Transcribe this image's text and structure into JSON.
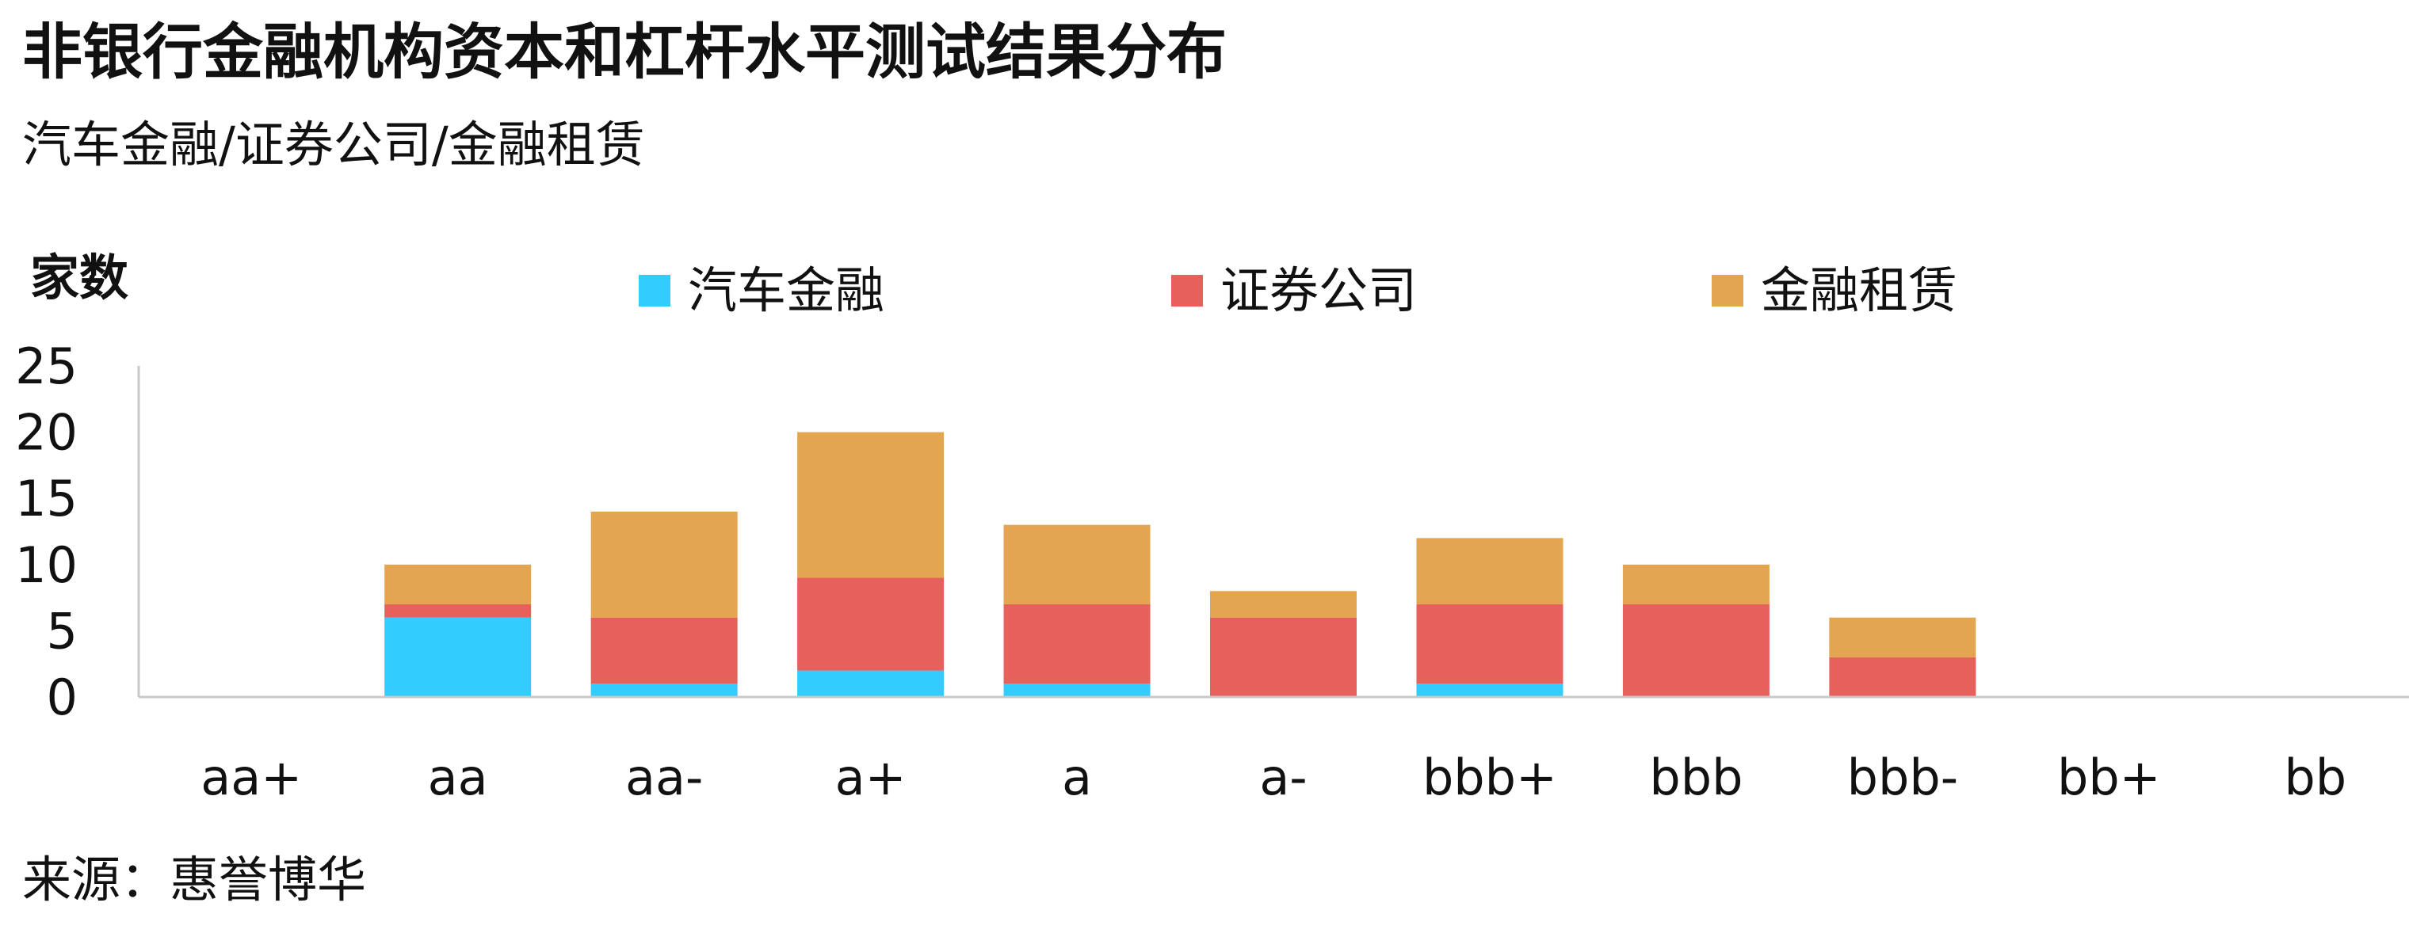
{
  "title": "非银行金融机构资本和杠杆水平测试结果分布",
  "subtitle": "汽车金融/证券公司/金融租赁",
  "source": "来源：惠誉博华",
  "chart_data": {
    "type": "bar",
    "stacked": true,
    "ylabel": "家数",
    "xlabel": "",
    "ylim": [
      0,
      25
    ],
    "yticks": [
      "0",
      "5",
      "10",
      "15",
      "20",
      "25"
    ],
    "grid": false,
    "legend_position": "top",
    "categories": [
      "aa+",
      "aa",
      "aa-",
      "a+",
      "a",
      "a-",
      "bbb+",
      "bbb",
      "bbb-",
      "bb+",
      "bb"
    ],
    "series": [
      {
        "name": "汽车金融",
        "color": "#33CCFF",
        "values": [
          0,
          6,
          1,
          2,
          1,
          0,
          1,
          0,
          0,
          0,
          0
        ]
      },
      {
        "name": "证券公司",
        "color": "#E8605C",
        "values": [
          0,
          1,
          5,
          7,
          6,
          6,
          6,
          7,
          3,
          0,
          0
        ]
      },
      {
        "name": "金融租赁",
        "color": "#E3A54F",
        "values": [
          0,
          3,
          8,
          11,
          6,
          2,
          5,
          3,
          3,
          0,
          0
        ]
      }
    ]
  }
}
